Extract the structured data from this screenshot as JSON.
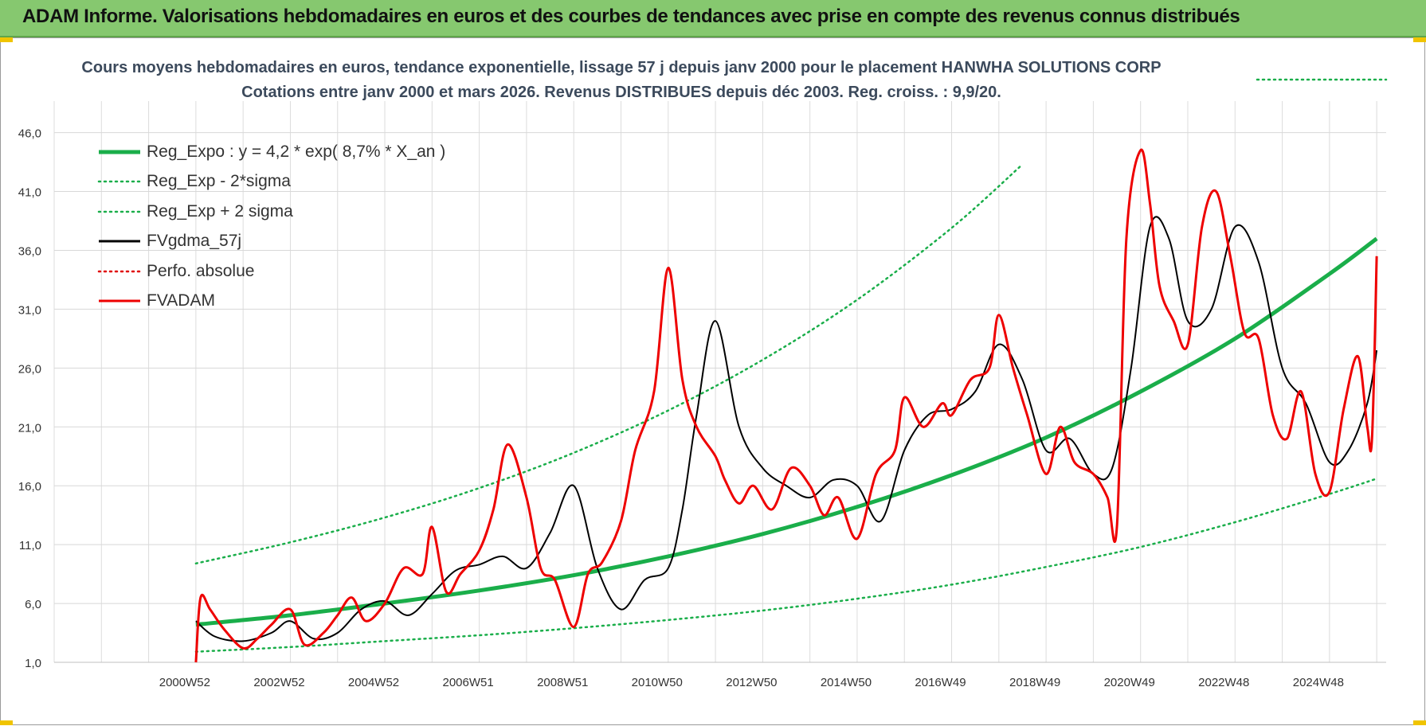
{
  "header": {
    "title": "ADAM Informe. Valorisations hebdomadaires en euros et des courbes de tendances avec prise en compte des revenus connus distribués"
  },
  "chart_data": {
    "type": "line",
    "title": "Cours moyens hebdomadaires en euros, tendance exponentielle, lissage 57 j depuis janv 2000  pour le placement HANWHA SOLUTIONS CORP",
    "subtitle": "Cotations entre janv 2000 et mars 2026. Revenus DISTRIBUES depuis déc 2003. Reg. croiss. : 9,9/20.",
    "xlabel": "",
    "ylabel": "",
    "x_range": [
      1998.0,
      2026.2
    ],
    "ylim": [
      1.0,
      48.0
    ],
    "grid": true,
    "legend_position": "top-left",
    "y_ticks": [
      "1,0",
      "6,0",
      "11,0",
      "16,0",
      "21,0",
      "26,0",
      "31,0",
      "36,0",
      "41,0",
      "46,0"
    ],
    "x_ticks": [
      {
        "label": "2000W52",
        "x": 2001.0
      },
      {
        "label": "2002W52",
        "x": 2003.0
      },
      {
        "label": "2004W52",
        "x": 2005.0
      },
      {
        "label": "2006W51",
        "x": 2007.0
      },
      {
        "label": "2008W51",
        "x": 2009.0
      },
      {
        "label": "2010W50",
        "x": 2011.0
      },
      {
        "label": "2012W50",
        "x": 2013.0
      },
      {
        "label": "2014W50",
        "x": 2015.0
      },
      {
        "label": "2016W49",
        "x": 2017.0
      },
      {
        "label": "2018W49",
        "x": 2019.0
      },
      {
        "label": "2020W49",
        "x": 2021.0
      },
      {
        "label": "2022W48",
        "x": 2023.0
      },
      {
        "label": "2024W48",
        "x": 2025.0
      }
    ],
    "series": [
      {
        "name": "Reg_Expo : y = 4,2 * exp( 8,7% *  X_an )",
        "color": "#1aae4a",
        "style": "solid",
        "width": 5,
        "x": [
          2001.0,
          2003.0,
          2005.0,
          2007.0,
          2009.0,
          2011.0,
          2013.0,
          2015.0,
          2017.0,
          2019.0,
          2021.0,
          2023.0,
          2025.0,
          2026.0
        ],
        "y": [
          4.2,
          5.0,
          6.0,
          7.1,
          8.4,
          10.0,
          11.9,
          14.2,
          16.9,
          20.1,
          24.0,
          28.5,
          34.0,
          37.0
        ]
      },
      {
        "name": "Reg_Exp - 2*sigma",
        "color": "#1aae4a",
        "style": "dotted",
        "width": 2.5,
        "x": [
          2001.0,
          2003.0,
          2005.0,
          2007.0,
          2009.0,
          2011.0,
          2013.0,
          2015.0,
          2017.0,
          2019.0,
          2021.0,
          2023.0,
          2025.0,
          2026.0
        ],
        "y": [
          1.9,
          2.3,
          2.8,
          3.3,
          3.9,
          4.6,
          5.4,
          6.4,
          7.6,
          9.1,
          10.8,
          12.9,
          15.3,
          16.6
        ]
      },
      {
        "name": "Reg_Exp + 2 sigma",
        "color": "#1aae4a",
        "style": "dotted",
        "width": 2.5,
        "x": [
          2001.0,
          2003.0,
          2005.0,
          2007.0,
          2009.0,
          2011.0,
          2013.0,
          2015.0,
          2017.0,
          2018.5
        ],
        "y": [
          9.4,
          11.2,
          13.3,
          15.8,
          18.8,
          22.4,
          26.7,
          31.8,
          37.9,
          43.3
        ]
      },
      {
        "name": "FVgdma_57j",
        "color": "#000000",
        "style": "solid",
        "width": 2,
        "x": [
          2001.0,
          2001.4,
          2002.0,
          2002.6,
          2003.0,
          2003.5,
          2004.0,
          2004.5,
          2005.0,
          2005.5,
          2006.0,
          2006.5,
          2007.0,
          2007.5,
          2008.0,
          2008.5,
          2009.0,
          2009.5,
          2010.0,
          2010.5,
          2011.0,
          2011.3,
          2011.6,
          2012.0,
          2012.5,
          2013.0,
          2013.5,
          2014.0,
          2014.5,
          2015.0,
          2015.5,
          2016.0,
          2016.5,
          2017.0,
          2017.5,
          2018.0,
          2018.5,
          2019.0,
          2019.5,
          2020.0,
          2020.4,
          2020.8,
          2021.2,
          2021.6,
          2022.0,
          2022.5,
          2023.0,
          2023.5,
          2024.0,
          2024.5,
          2025.0,
          2025.4,
          2025.8,
          2026.0
        ],
        "y": [
          4.5,
          3.2,
          2.8,
          3.5,
          4.5,
          3.0,
          3.5,
          5.5,
          6.2,
          5.0,
          6.8,
          8.8,
          9.3,
          10.0,
          9.0,
          12.0,
          16.0,
          9.0,
          5.5,
          8.0,
          9.0,
          14.0,
          22.0,
          30.0,
          21.0,
          17.5,
          16.0,
          15.0,
          16.5,
          16.0,
          13.0,
          19.0,
          22.0,
          22.5,
          24.0,
          28.0,
          25.0,
          19.0,
          20.0,
          17.0,
          17.5,
          26.0,
          38.0,
          37.0,
          30.0,
          31.0,
          38.0,
          35.0,
          26.0,
          23.0,
          18.0,
          19.0,
          23.0,
          27.5
        ]
      },
      {
        "name": "Perfo. absolue",
        "color": "#e00000",
        "style": "dotted",
        "width": 2,
        "x": [],
        "y": []
      },
      {
        "name": "FVADAM",
        "color": "#ee0000",
        "style": "solid",
        "width": 3,
        "x": [
          2001.0,
          2001.1,
          2001.3,
          2001.6,
          2002.0,
          2002.3,
          2002.6,
          2003.0,
          2003.3,
          2003.7,
          2004.0,
          2004.3,
          2004.6,
          2005.0,
          2005.4,
          2005.8,
          2006.0,
          2006.3,
          2006.6,
          2007.0,
          2007.3,
          2007.6,
          2008.0,
          2008.3,
          2008.6,
          2009.0,
          2009.3,
          2009.6,
          2010.0,
          2010.3,
          2010.7,
          2011.0,
          2011.3,
          2011.6,
          2012.0,
          2012.2,
          2012.5,
          2012.8,
          2013.2,
          2013.6,
          2014.0,
          2014.3,
          2014.6,
          2015.0,
          2015.4,
          2015.8,
          2016.0,
          2016.4,
          2016.8,
          2017.0,
          2017.4,
          2017.8,
          2018.0,
          2018.3,
          2018.6,
          2019.0,
          2019.3,
          2019.6,
          2020.0,
          2020.3,
          2020.5,
          2020.7,
          2021.0,
          2021.2,
          2021.4,
          2021.7,
          2022.0,
          2022.3,
          2022.6,
          2022.9,
          2023.2,
          2023.5,
          2023.8,
          2024.1,
          2024.4,
          2024.7,
          2025.0,
          2025.3,
          2025.6,
          2025.8,
          2025.9,
          2026.0
        ],
        "y": [
          1.0,
          6.5,
          5.5,
          3.8,
          2.2,
          3.0,
          4.2,
          5.5,
          2.5,
          3.5,
          5.0,
          6.5,
          4.5,
          6.0,
          9.0,
          8.5,
          12.5,
          7.0,
          8.5,
          10.5,
          14.0,
          19.5,
          15.0,
          9.0,
          8.0,
          4.0,
          8.5,
          9.5,
          13.0,
          19.0,
          24.0,
          34.5,
          25.0,
          21.0,
          18.5,
          16.5,
          14.5,
          16.0,
          14.0,
          17.5,
          16.0,
          13.5,
          15.0,
          11.5,
          17.0,
          19.0,
          23.5,
          21.0,
          23.0,
          22.0,
          25.0,
          26.0,
          30.5,
          26.0,
          22.0,
          17.0,
          21.0,
          18.0,
          17.0,
          15.0,
          12.5,
          37.0,
          44.5,
          40.0,
          33.0,
          30.0,
          28.0,
          38.0,
          41.0,
          35.5,
          29.0,
          28.5,
          22.0,
          20.0,
          24.0,
          17.0,
          15.5,
          22.5,
          27.0,
          21.0,
          20.0,
          35.5
        ]
      }
    ]
  }
}
